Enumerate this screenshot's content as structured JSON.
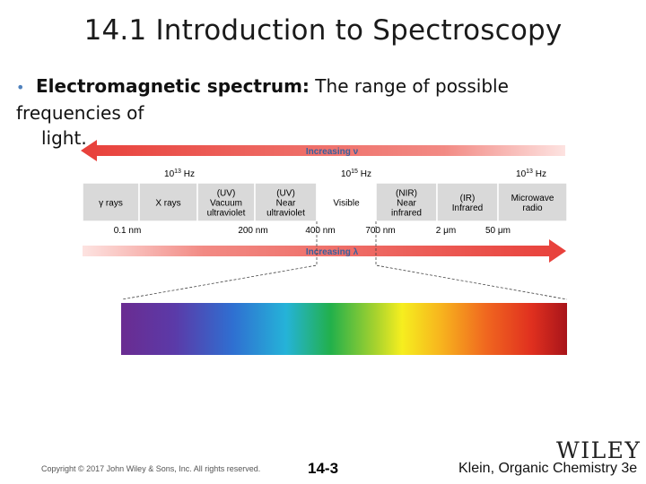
{
  "slide": {
    "title": "14.1 Introduction to Spectroscopy",
    "bullet_term": "Electromagnetic spectrum:",
    "bullet_text": " The range of possible frequencies of",
    "bullet_text_cont": "light."
  },
  "diagram": {
    "freq_arrow_label": "Increasing ν",
    "wave_arrow_label": "Increasing λ",
    "freq_labels": [
      {
        "base": "10",
        "exp": "13",
        "unit": " Hz"
      },
      {
        "base": "10",
        "exp": "15",
        "unit": " Hz"
      },
      {
        "base": "10",
        "exp": "13",
        "unit": " Hz"
      }
    ],
    "regions": [
      [
        "γ rays"
      ],
      [
        "X rays"
      ],
      [
        "(UV)",
        "Vacuum",
        "ultraviolet"
      ],
      [
        "(UV)",
        "Near",
        "ultraviolet"
      ],
      [
        "Visible"
      ],
      [
        "(NIR)",
        "Near",
        "infrared"
      ],
      [
        "(IR)",
        "Infrared"
      ],
      [
        "Microwave",
        "radio"
      ]
    ],
    "wavelength_labels": [
      "0.1 nm",
      "200 nm",
      "400 nm",
      "700 nm",
      "2 μm",
      "50 μm"
    ],
    "colors": {
      "arrow_red": "#e8403a",
      "region_fill": "#d9d9d9",
      "visible_fill": "#ffffff",
      "label_blue": "#3a5f9c"
    }
  },
  "footer": {
    "copyright": "Copyright © 2017 John Wiley & Sons, Inc. All rights reserved.",
    "page": "14-3",
    "publisher": "WILEY",
    "book": "Klein, Organic Chemistry 3e"
  }
}
